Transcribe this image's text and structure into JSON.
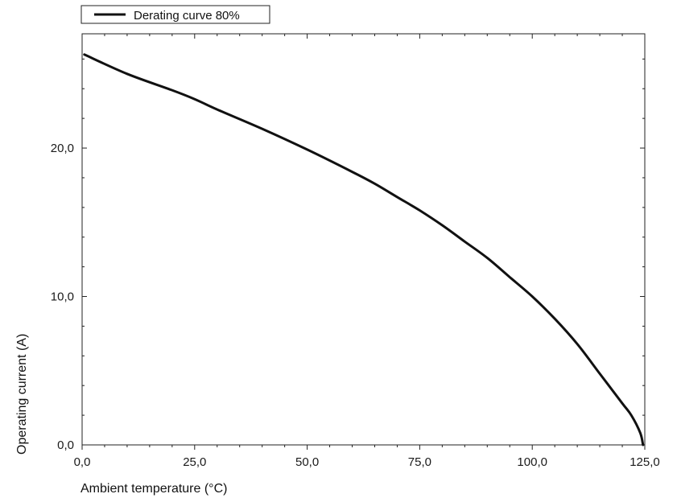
{
  "chart_data": {
    "type": "line",
    "title": "",
    "xlabel": "Ambient temperature (°C)",
    "ylabel": "Operating current (A)",
    "xlim": [
      0,
      125
    ],
    "ylim": [
      0,
      27.7
    ],
    "x_ticks": [
      0,
      25,
      50,
      75,
      100,
      125
    ],
    "x_tick_labels": [
      "0,0",
      "25,0",
      "50,0",
      "75,0",
      "100,0",
      "125,0"
    ],
    "y_ticks": [
      0,
      10,
      20
    ],
    "y_tick_labels": [
      "0,0",
      "10,0",
      "20,0"
    ],
    "grid": false,
    "legend_position": "top-left",
    "series": [
      {
        "name": "Derating curve 80%",
        "color": "#111111",
        "x": [
          0.5,
          10,
          20,
          25,
          30,
          40,
          50,
          60,
          65,
          70,
          75,
          80,
          85,
          90,
          95,
          100,
          105,
          110,
          115,
          120,
          122,
          124,
          124.6
        ],
        "y": [
          26.3,
          25.0,
          23.9,
          23.3,
          22.6,
          21.3,
          19.9,
          18.4,
          17.6,
          16.7,
          15.8,
          14.8,
          13.7,
          12.6,
          11.3,
          10.0,
          8.5,
          6.8,
          4.8,
          2.8,
          2.0,
          0.8,
          0.0
        ]
      }
    ]
  }
}
